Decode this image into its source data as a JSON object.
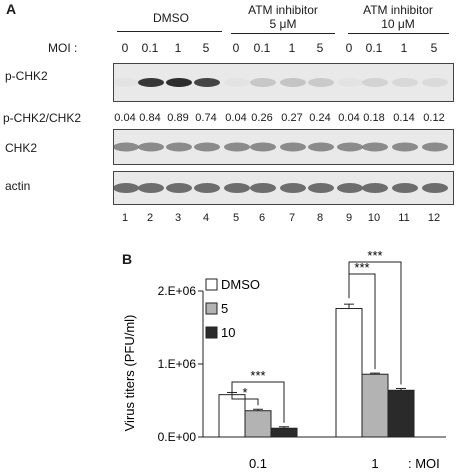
{
  "panelA": {
    "label": "A",
    "groups": [
      {
        "line1": "DMSO",
        "line2": ""
      },
      {
        "line1": "ATM inhibitor",
        "line2": "5 μM"
      },
      {
        "line1": "ATM inhibitor",
        "line2": "10 μM"
      }
    ],
    "moi_label": "MOI :",
    "moi_values": [
      "0",
      "0.1",
      "1",
      "5",
      "0",
      "0.1",
      "1",
      "5",
      "0",
      "0.1",
      "1",
      "5"
    ],
    "pchk2_label": "p-CHK2",
    "ratio_label": "p-CHK2/CHK2",
    "ratios": [
      "0.04",
      "0.84",
      "0.89",
      "0.74",
      "0.04",
      "0.26",
      "0.27",
      "0.24",
      "0.04",
      "0.18",
      "0.14",
      "0.12"
    ],
    "chk2_label": "CHK2",
    "actin_label": "actin",
    "lanes": [
      "1",
      "2",
      "3",
      "4",
      "5",
      "6",
      "7",
      "8",
      "9",
      "10",
      "11",
      "12"
    ],
    "band_intensity": {
      "pchk2": [
        0.05,
        0.85,
        0.9,
        0.78,
        0.05,
        0.28,
        0.3,
        0.26,
        0.05,
        0.2,
        0.16,
        0.14
      ],
      "chk2": [
        0.55,
        0.55,
        0.55,
        0.55,
        0.55,
        0.55,
        0.55,
        0.55,
        0.55,
        0.55,
        0.55,
        0.55
      ],
      "actin": [
        0.65,
        0.65,
        0.65,
        0.65,
        0.65,
        0.65,
        0.65,
        0.65,
        0.65,
        0.65,
        0.65,
        0.65
      ]
    }
  },
  "panelB": {
    "label": "B",
    "chart_data": {
      "type": "bar",
      "ylabel": "Virus titers (PFU/ml)",
      "yticks": [
        "0.E+00",
        "1.E+06",
        "2.E+06"
      ],
      "ylim": [
        0,
        2000000
      ],
      "categories": [
        "0.1",
        "1"
      ],
      "x_suffix": ": MOI",
      "series": [
        {
          "name": "DMSO",
          "values": [
            580000,
            1760000
          ],
          "errors": [
            30000,
            60000
          ],
          "color": "#ffffff"
        },
        {
          "name": "5",
          "values": [
            360000,
            860000
          ],
          "errors": [
            20000,
            15000
          ],
          "color": "#b3b3b3"
        },
        {
          "name": "10",
          "values": [
            120000,
            640000
          ],
          "errors": [
            20000,
            25000
          ],
          "color": "#2a2a2a"
        }
      ],
      "significance": [
        {
          "category": "0.1",
          "from_series": 0,
          "to_series": 1,
          "label": "*"
        },
        {
          "category": "0.1",
          "from_series": 0,
          "to_series": 2,
          "label": "***"
        },
        {
          "category": "1",
          "from_series": 0,
          "to_series": 1,
          "label": "***"
        },
        {
          "category": "1",
          "from_series": 0,
          "to_series": 2,
          "label": "***"
        }
      ],
      "legend_position": "top-left"
    }
  }
}
